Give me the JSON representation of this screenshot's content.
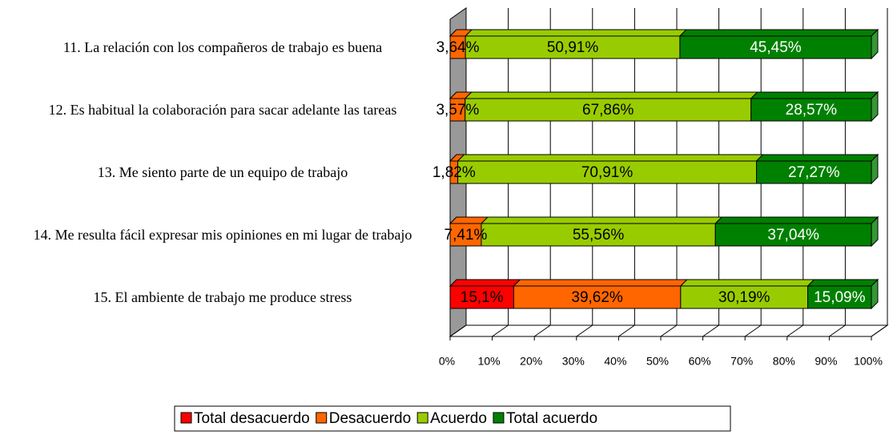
{
  "chart_data": {
    "type": "bar",
    "orientation": "horizontal",
    "stacked": true,
    "categories": [
      "11. La relación con los compañeros de trabajo es buena",
      "12. Es habitual la colaboración para sacar adelante las tareas",
      "13. Me siento parte de un equipo de trabajo",
      "14. Me resulta fácil expresar mis opiniones en mi lugar de trabajo",
      "15. El ambiente de trabajo me produce stress"
    ],
    "series": [
      {
        "name": "Total desacuerdo",
        "color": "#ff0000",
        "values": [
          0,
          0,
          0,
          0,
          15.1
        ],
        "value_labels": [
          null,
          null,
          null,
          null,
          "15,1%"
        ]
      },
      {
        "name": "Desacuerdo",
        "color": "#ff6600",
        "values": [
          3.64,
          3.57,
          1.82,
          7.41,
          39.62
        ],
        "value_labels": [
          "3,64%",
          "3,57%",
          "1,82%",
          "7,41%",
          "39,62%"
        ]
      },
      {
        "name": "Acuerdo",
        "color": "#99cc00",
        "values": [
          50.91,
          67.86,
          70.91,
          55.56,
          30.19
        ],
        "value_labels": [
          "50,91%",
          "67,86%",
          "70,91%",
          "55,56%",
          "30,19%"
        ]
      },
      {
        "name": "Total acuerdo",
        "color": "#008000",
        "values": [
          45.45,
          28.57,
          27.27,
          37.04,
          15.09
        ],
        "value_labels": [
          "45,45%",
          "28,57%",
          "27,27%",
          "37,04%",
          "15,09%"
        ]
      }
    ],
    "xlim": [
      0,
      100
    ],
    "xticks": [
      {
        "value": 0,
        "label": "0%"
      },
      {
        "value": 10,
        "label": "10%"
      },
      {
        "value": 20,
        "label": "20%"
      },
      {
        "value": 30,
        "label": "30%"
      },
      {
        "value": 40,
        "label": "40%"
      },
      {
        "value": 50,
        "label": "50%"
      },
      {
        "value": 60,
        "label": "60%"
      },
      {
        "value": 70,
        "label": "70%"
      },
      {
        "value": 80,
        "label": "80%"
      },
      {
        "value": 90,
        "label": "90%"
      },
      {
        "value": 100,
        "label": "100%"
      }
    ],
    "grid": true,
    "legend": "bottom"
  }
}
